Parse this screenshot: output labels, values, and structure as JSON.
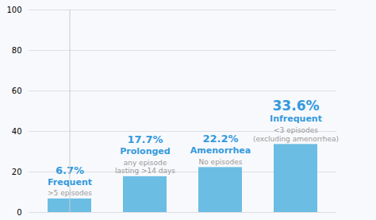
{
  "chart_data": {
    "type": "bar",
    "categories": [
      "Frequent",
      "Prolonged",
      "Amenorrhea",
      "Infrequent"
    ],
    "values": [
      6.7,
      17.7,
      22.2,
      33.6
    ],
    "value_labels": [
      "6.7%",
      "17.7%",
      "22.2%",
      "33.6%"
    ],
    "data_labels": true,
    "annotations": [
      ">5 episodes",
      "any episode\nlasting >14 days",
      "No episodes",
      "<3 episodes\n(excluding amenorrhea)"
    ],
    "color": "#6BBDE3",
    "ylim": [
      0,
      100
    ],
    "yticks": [
      0,
      20,
      40,
      60,
      80,
      100
    ],
    "grid": true,
    "tick_labels": "y"
  }
}
